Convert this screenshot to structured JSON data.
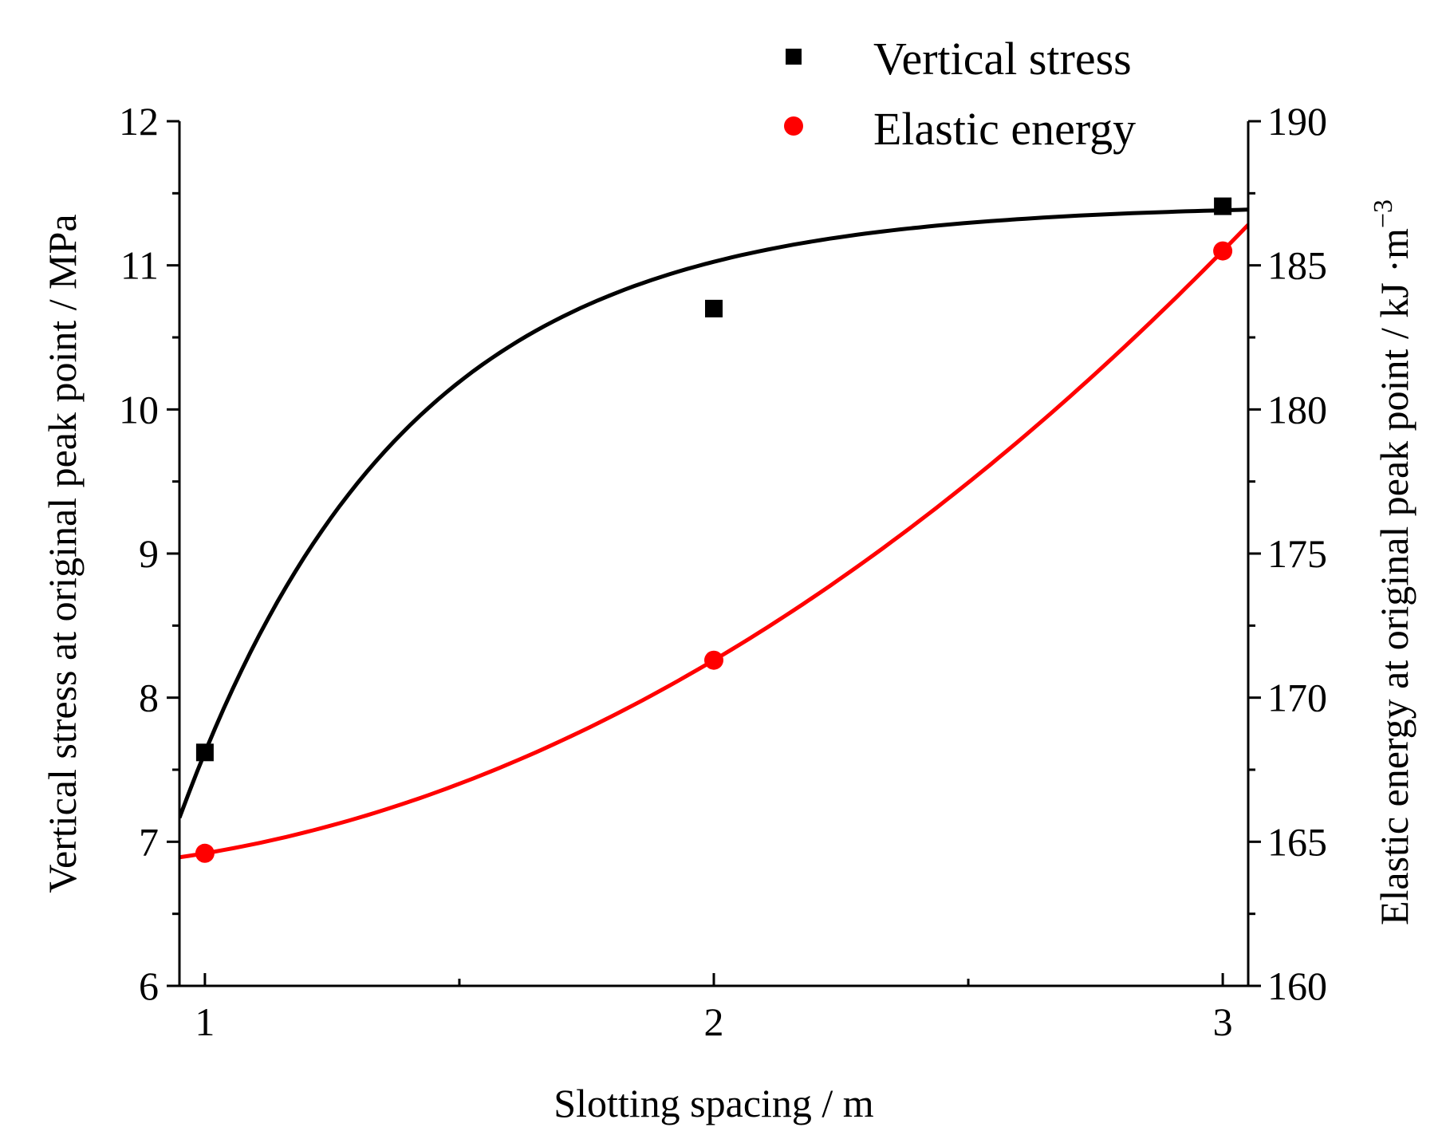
{
  "chart_data": {
    "type": "line",
    "title": "",
    "xlabel": "Slotting spacing / m",
    "ylabel_left": "Vertical stress at original peak point / MPa",
    "ylabel_right_main": "Elastic energy at original peak point / kJ ·m",
    "ylabel_right_sup": "−3",
    "xlim": [
      0.95,
      3.05
    ],
    "ylim_left": [
      6,
      12
    ],
    "ylim_right": [
      160,
      190
    ],
    "x_ticks": [
      1,
      2,
      3
    ],
    "x_tick_labels": [
      "1",
      "2",
      "3"
    ],
    "x_minor_ticks": [
      1.5,
      2.5
    ],
    "y_left_ticks": [
      6,
      7,
      8,
      9,
      10,
      11,
      12
    ],
    "y_left_tick_labels": [
      "6",
      "7",
      "8",
      "9",
      "10",
      "11",
      "12"
    ],
    "y_right_ticks": [
      160,
      165,
      170,
      175,
      180,
      185,
      190
    ],
    "y_right_tick_labels": [
      "160",
      "165",
      "170",
      "175",
      "180",
      "185",
      "190"
    ],
    "legend_position": "top-right",
    "series": [
      {
        "name": "Vertical stress",
        "axis": "left",
        "marker": "square",
        "color": "#000000",
        "x": [
          1,
          2,
          3
        ],
        "values": [
          7.62,
          10.7,
          11.41
        ]
      },
      {
        "name": "Elastic energy",
        "axis": "right",
        "marker": "circle",
        "color": "#ff0000",
        "x": [
          1,
          2,
          3
        ],
        "values": [
          164.6,
          171.3,
          185.5
        ]
      }
    ]
  }
}
